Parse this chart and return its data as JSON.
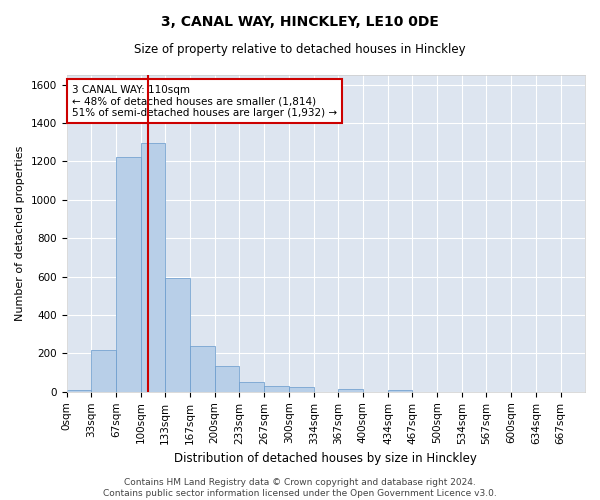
{
  "title": "3, CANAL WAY, HINCKLEY, LE10 0DE",
  "subtitle": "Size of property relative to detached houses in Hinckley",
  "xlabel": "Distribution of detached houses by size in Hinckley",
  "ylabel": "Number of detached properties",
  "footer_line1": "Contains HM Land Registry data © Crown copyright and database right 2024.",
  "footer_line2": "Contains public sector information licensed under the Open Government Licence v3.0.",
  "annotation_line1": "3 CANAL WAY: 110sqm",
  "annotation_line2": "← 48% of detached houses are smaller (1,814)",
  "annotation_line3": "51% of semi-detached houses are larger (1,932) →",
  "property_size": 110,
  "bar_color": "#b8cfe8",
  "bar_edge_color": "#6699cc",
  "vline_color": "#cc0000",
  "axes_bg_color": "#dde5f0",
  "fig_bg_color": "#ffffff",
  "categories": [
    "0sqm",
    "33sqm",
    "67sqm",
    "100sqm",
    "133sqm",
    "167sqm",
    "200sqm",
    "233sqm",
    "267sqm",
    "300sqm",
    "334sqm",
    "367sqm",
    "400sqm",
    "434sqm",
    "467sqm",
    "500sqm",
    "534sqm",
    "567sqm",
    "600sqm",
    "634sqm",
    "667sqm"
  ],
  "bin_edges": [
    0,
    33,
    67,
    100,
    133,
    167,
    200,
    233,
    267,
    300,
    334,
    367,
    400,
    434,
    467,
    500,
    534,
    567,
    600,
    634,
    667,
    700
  ],
  "values": [
    10,
    220,
    1225,
    1295,
    595,
    240,
    135,
    50,
    30,
    27,
    0,
    15,
    0,
    12,
    0,
    0,
    0,
    0,
    0,
    0,
    0
  ],
  "ylim": [
    0,
    1650
  ],
  "yticks": [
    0,
    200,
    400,
    600,
    800,
    1000,
    1200,
    1400,
    1600
  ],
  "grid_color": "#ffffff",
  "annotation_box_color": "#ffffff",
  "annotation_box_edge": "#cc0000",
  "title_fontsize": 10,
  "subtitle_fontsize": 8.5,
  "xlabel_fontsize": 8.5,
  "ylabel_fontsize": 8,
  "tick_fontsize": 7.5,
  "annotation_fontsize": 7.5,
  "footer_fontsize": 6.5
}
